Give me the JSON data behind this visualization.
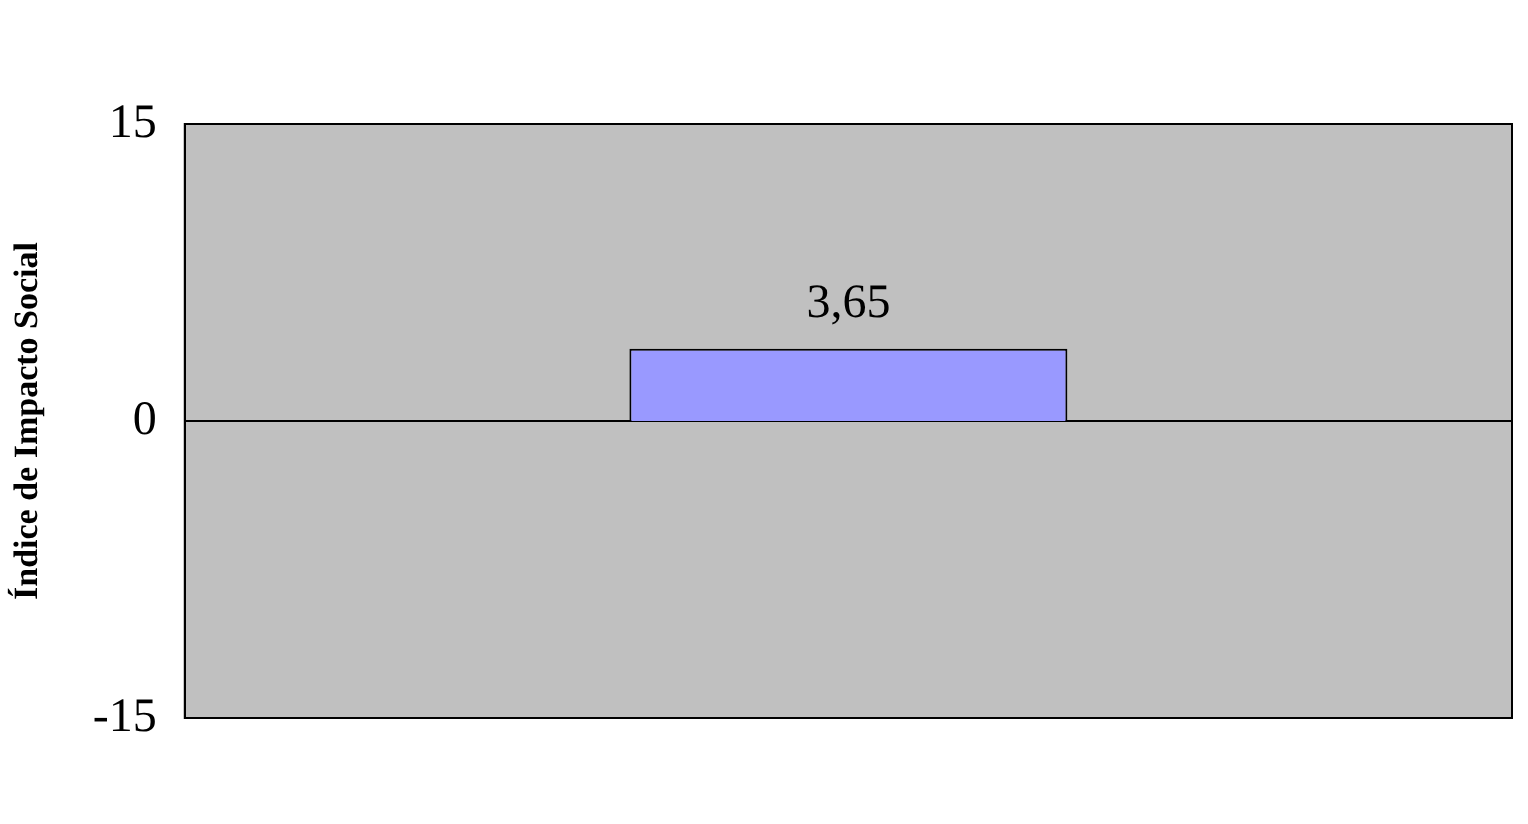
{
  "chart_data": {
    "type": "bar",
    "ylabel": "Índice de Impacto Social",
    "categories": [
      null
    ],
    "values": [
      3.65
    ],
    "value_labels": [
      "3,65"
    ],
    "color": "#9999ff",
    "ylim": [
      -15,
      15
    ],
    "yticks": [
      -15,
      0,
      15
    ],
    "ref_lines": [
      {
        "axis": "y",
        "value": 0,
        "color": "#000000"
      }
    ],
    "tick_labels": "y",
    "grid": false,
    "legend": false
  }
}
